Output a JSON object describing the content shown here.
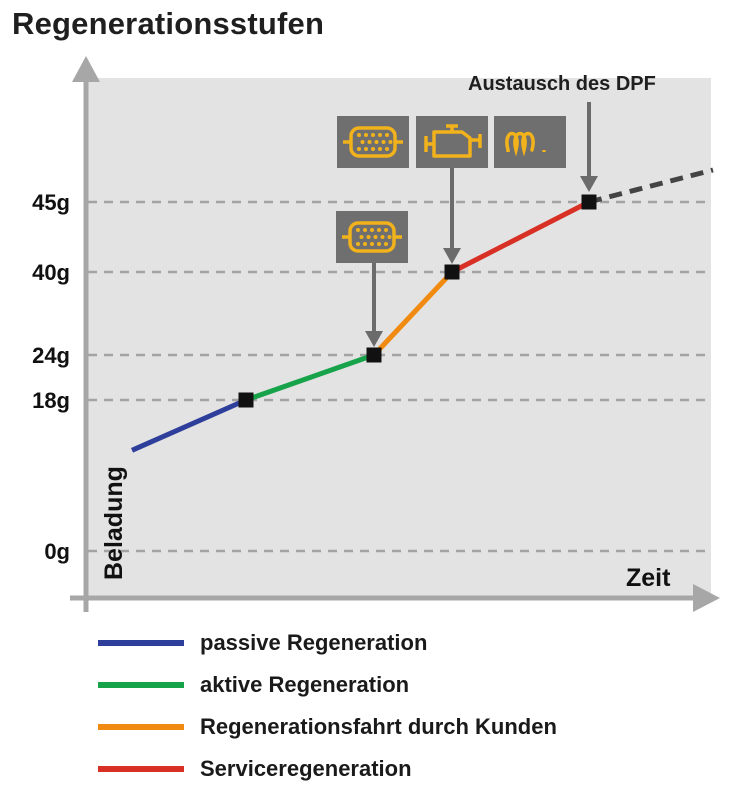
{
  "title": "Regenerationsstufen",
  "chart_data": {
    "type": "line",
    "xlabel": "Zeit",
    "ylabel": "Beladung",
    "y_ticks": [
      "0g",
      "18g",
      "24g",
      "40g",
      "45g"
    ],
    "points": [
      {
        "x": 0,
        "y": 12
      },
      {
        "x": 1,
        "y": 18
      },
      {
        "x": 2,
        "y": 24
      },
      {
        "x": 3,
        "y": 40
      },
      {
        "x": 4,
        "y": 45
      },
      {
        "x": 5,
        "y": 47
      }
    ],
    "series": [
      {
        "name": "passive Regeneration",
        "color": "#2e3f9b",
        "from": 0,
        "to": 1
      },
      {
        "name": "aktive Regeneration",
        "color": "#17a34a",
        "from": 1,
        "to": 2
      },
      {
        "name": "Regenerationsfahrt durch Kunden",
        "color": "#f08a10",
        "from": 2,
        "to": 3
      },
      {
        "name": "Serviceregeneration",
        "color": "#d93025",
        "from": 3,
        "to": 4
      }
    ],
    "extension": {
      "from": 4,
      "to": 5,
      "style": "dashed",
      "color": "#444444"
    },
    "annotations": [
      {
        "text": "Austausch des DPF",
        "target_point": 4
      }
    ],
    "warning_icons": [
      {
        "target_point": 2,
        "icons": [
          "dpf-filter-icon"
        ]
      },
      {
        "target_point": 3,
        "icons": [
          "dpf-filter-icon",
          "engine-check-icon",
          "glow-plug-icon"
        ]
      }
    ],
    "icon_color": "#f2b21b",
    "grid": "horizontal-dashed",
    "legend_position": "bottom"
  }
}
